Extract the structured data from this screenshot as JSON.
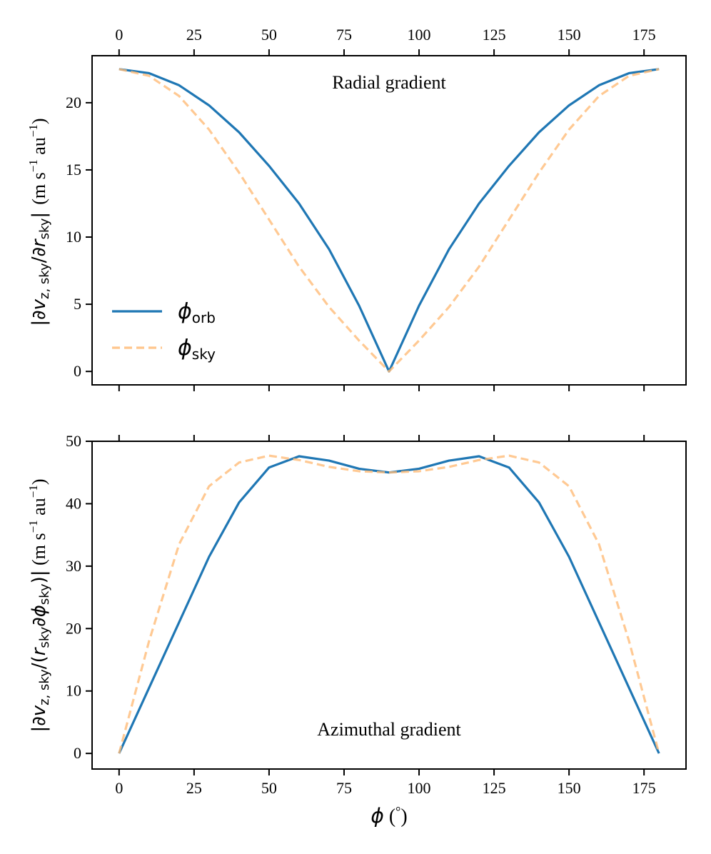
{
  "chart_data": [
    {
      "type": "line",
      "panel": "top",
      "annotation": "Radial gradient",
      "ylabel": {
        "abs_open": "|",
        "d1": "∂",
        "v": "v",
        "vsub": "z, sky",
        "slash": "/",
        "d2": "∂",
        "r": "r",
        "rsub": "sky",
        "abs_close": "|",
        "units_open": "(m s",
        "exp": "−1",
        "units_mid": " au",
        "units_close": ")"
      },
      "xlim": [
        -9,
        189
      ],
      "ylim": [
        -1,
        23.5
      ],
      "xticks": [
        0,
        25,
        50,
        75,
        100,
        125,
        150,
        175
      ],
      "yticks": [
        0,
        5,
        10,
        15,
        20
      ],
      "x_tick_labels_top": [
        "0",
        "25",
        "50",
        "75",
        "100",
        "125",
        "150",
        "175"
      ],
      "y_tick_labels": [
        "0",
        "5",
        "10",
        "15",
        "20"
      ],
      "series": [
        {
          "name": "phi_orb",
          "style": "solid",
          "color": "#1f77b4",
          "x": [
            0,
            10,
            20,
            30,
            40,
            50,
            60,
            70,
            80,
            90,
            100,
            110,
            120,
            130,
            140,
            150,
            160,
            170,
            180
          ],
          "y": [
            22.5,
            22.2,
            21.3,
            19.8,
            17.8,
            15.3,
            12.5,
            9.1,
            4.9,
            0.0,
            4.9,
            9.1,
            12.5,
            15.3,
            17.8,
            19.8,
            21.3,
            22.2,
            22.5
          ]
        },
        {
          "name": "phi_sky",
          "style": "dashed",
          "color": "#ffbb78",
          "x": [
            0,
            10,
            20,
            30,
            40,
            50,
            60,
            70,
            80,
            90,
            100,
            110,
            120,
            130,
            140,
            150,
            160,
            170,
            180
          ],
          "y": [
            22.5,
            22.0,
            20.5,
            18.0,
            14.8,
            11.3,
            7.8,
            4.8,
            2.3,
            0.0,
            2.3,
            4.8,
            7.8,
            11.3,
            14.8,
            18.0,
            20.5,
            22.0,
            22.5
          ]
        }
      ],
      "legend": {
        "placement": "lower-left",
        "entries": [
          {
            "symbol": "ϕ",
            "sub": "orb"
          },
          {
            "symbol": "ϕ",
            "sub": "sky"
          }
        ]
      }
    },
    {
      "type": "line",
      "panel": "bottom",
      "annotation": "Azimuthal gradient",
      "ylabel": {
        "abs_open": "|",
        "d1": "∂",
        "v": "v",
        "vsub": "z, sky",
        "slash": "/(",
        "r": "r",
        "rsub": "sky",
        "d2": "∂",
        "phi": "ϕ",
        "phisub": "sky",
        "paren_close": ")",
        "abs_close": "|",
        "units_open": " (m s",
        "exp": "−1",
        "units_mid": " au",
        "units_close": ")"
      },
      "xlabel": {
        "symbol": "ϕ",
        "unit_open": " (",
        "deg": "°",
        "unit_close": ")"
      },
      "xlim": [
        -9,
        189
      ],
      "ylim": [
        -2.5,
        50
      ],
      "xticks": [
        0,
        25,
        50,
        75,
        100,
        125,
        150,
        175
      ],
      "yticks": [
        0,
        10,
        20,
        30,
        40,
        50
      ],
      "x_tick_labels": [
        "0",
        "25",
        "50",
        "75",
        "100",
        "125",
        "150",
        "175"
      ],
      "y_tick_labels": [
        "0",
        "10",
        "20",
        "30",
        "40",
        "50"
      ],
      "series": [
        {
          "name": "phi_orb",
          "style": "solid",
          "color": "#1f77b4",
          "x": [
            0,
            10,
            20,
            30,
            40,
            50,
            60,
            70,
            80,
            90,
            100,
            110,
            120,
            130,
            140,
            150,
            160,
            170,
            180
          ],
          "y": [
            0.0,
            10.5,
            21.0,
            31.5,
            40.2,
            45.8,
            47.6,
            46.9,
            45.6,
            45.0,
            45.6,
            46.9,
            47.6,
            45.8,
            40.2,
            31.5,
            21.0,
            10.5,
            0.0
          ]
        },
        {
          "name": "phi_sky",
          "style": "dashed",
          "color": "#ffbb78",
          "x": [
            0,
            10,
            20,
            30,
            40,
            50,
            60,
            70,
            80,
            90,
            100,
            110,
            120,
            130,
            140,
            150,
            160,
            170,
            180
          ],
          "y": [
            0.0,
            18.0,
            33.5,
            42.8,
            46.6,
            47.7,
            47.0,
            45.9,
            45.2,
            45.0,
            45.2,
            45.9,
            47.0,
            47.7,
            46.6,
            42.8,
            33.5,
            18.0,
            0.0
          ]
        }
      ]
    }
  ]
}
